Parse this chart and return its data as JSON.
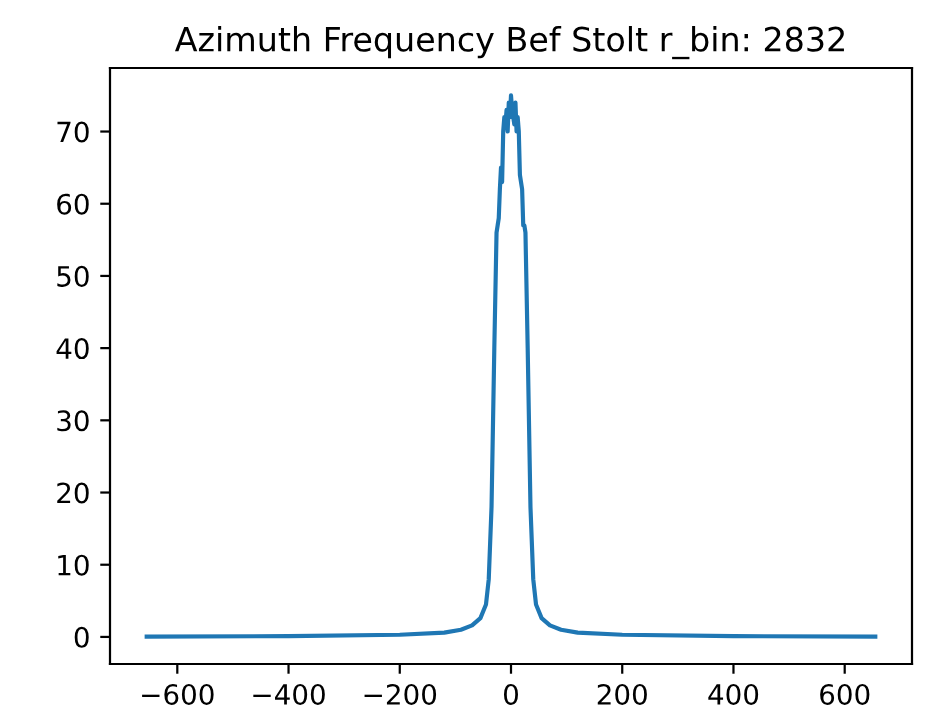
{
  "chart_data": {
    "type": "line",
    "title": "Azimuth Frequency Bef Stolt r_bin: 2832",
    "x": [
      -655,
      -400,
      -200,
      -120,
      -90,
      -70,
      -55,
      -45,
      -40,
      -35,
      -30,
      -26,
      -24,
      -22,
      -20,
      -18,
      -16,
      -14,
      -12,
      -10,
      -8,
      -6,
      -4,
      -2,
      0,
      2,
      4,
      6,
      8,
      10,
      12,
      14,
      16,
      18,
      20,
      22,
      24,
      26,
      30,
      35,
      40,
      45,
      55,
      70,
      90,
      120,
      200,
      400,
      655
    ],
    "series": [
      {
        "color": "#1f77b4",
        "values": [
          0.05,
          0.1,
          0.3,
          0.6,
          1.0,
          1.6,
          2.6,
          4.5,
          8,
          18,
          40,
          56,
          57,
          58,
          62,
          65,
          63,
          70,
          72,
          71,
          73,
          70,
          74,
          72,
          75,
          73,
          72,
          71,
          74,
          70,
          72,
          70,
          64,
          63,
          62,
          57,
          57,
          56,
          40,
          18,
          8,
          4.5,
          2.6,
          1.6,
          1.0,
          0.6,
          0.3,
          0.1,
          0.05
        ]
      }
    ],
    "xlim": [
      -721,
      721
    ],
    "ylim": [
      -3.75,
      78.8
    ],
    "xticks": [
      {
        "value": -600,
        "label": "−600"
      },
      {
        "value": -400,
        "label": "−400"
      },
      {
        "value": -200,
        "label": "−200"
      },
      0,
      200,
      400,
      600
    ],
    "yticks": [
      0,
      10,
      20,
      30,
      40,
      50,
      60,
      70
    ],
    "grid": false,
    "legend": false
  }
}
